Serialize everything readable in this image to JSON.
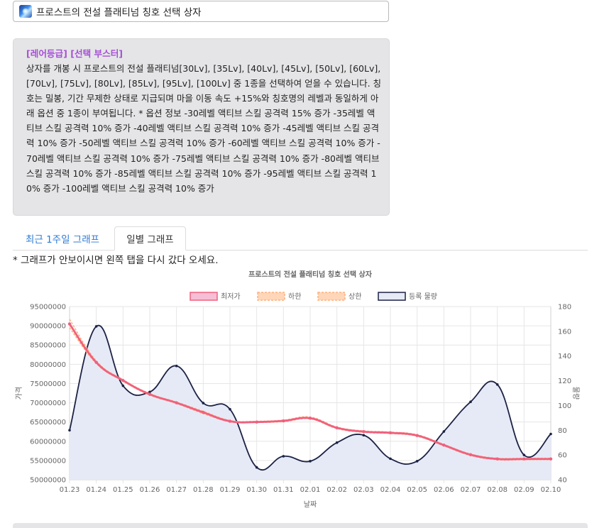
{
  "item": {
    "icon": "frost-crystal-icon",
    "title": "프로스트의 전설 플래티넘 칭호 선택 상자"
  },
  "description": {
    "tags": "[레어등급] [선택 부스터]",
    "text": "상자를 개봉 시 프로스트의 전설 플래티넘[30Lv], [35Lv], [40Lv], [45Lv], [50Lv], [60Lv], [70Lv], [75Lv], [80Lv], [85Lv], [95Lv], [100Lv] 중 1종을 선택하여 얻을 수 있습니다. 칭호는 밀봉, 기간 무제한 상태로 지급되며 마을 이동 속도 +15%와 칭호명의 레벨과 동일하게 아래 옵션 중 1종이 부여됩니다. * 옵션 정보 -30레벨 액티브 스킬 공격력 15% 증가 -35레벨 액티브 스킬 공격력 10% 증가 -40레벨 액티브 스킬 공격력 10% 증가 -45레벨 액티브 스킬 공격력 10% 증가 -50레벨 액티브 스킬 공격력 10% 증가 -60레벨 액티브 스킬 공격력 10% 증가 -70레벨 액티브 스킬 공격력 10% 증가 -75레벨 액티브 스킬 공격력 10% 증가 -80레벨 액티브 스킬 공격력 10% 증가 -85레벨 액티브 스킬 공격력 10% 증가 -95레벨 액티브 스킬 공격력 10% 증가 -100레벨 액티브 스킬 공격력 10% 증가"
  },
  "tabs": {
    "week": "최근 1주일 그래프",
    "daily": "일별 그래프"
  },
  "notice": "* 그래프가 안보이시면 왼쪽 탭을 다시 갔다 오세요.",
  "chart_data": {
    "type": "line",
    "title": "프로스트의 전설 플래티넘 칭호 선택 상자",
    "xlabel": "날짜",
    "ylabel": "가격",
    "y2label": "물량",
    "ylim": [
      50000000,
      95000000
    ],
    "y_ticks": [
      50000000,
      55000000,
      60000000,
      65000000,
      70000000,
      75000000,
      80000000,
      85000000,
      90000000,
      95000000
    ],
    "y2lim": [
      40,
      180
    ],
    "y2_ticks": [
      40,
      60,
      80,
      100,
      120,
      140,
      160,
      180
    ],
    "categories": [
      "01.23",
      "01.24",
      "01.25",
      "01.26",
      "01.27",
      "01.28",
      "01.29",
      "01.30",
      "01.31",
      "02.01",
      "02.02",
      "02.03",
      "02.04",
      "02.05",
      "02.06",
      "02.07",
      "02.08",
      "02.09",
      "02.10"
    ],
    "grid": true,
    "legend_position": "top",
    "series": [
      {
        "name": "최저가",
        "axis": "left",
        "color": "#f0607e",
        "fill": "#f7bfd6",
        "values": [
          90500000,
          80500000,
          75800000,
          72200000,
          70000000,
          67500000,
          65200000,
          65000000,
          65300000,
          66000000,
          63500000,
          62500000,
          62200000,
          61500000,
          59000000,
          56500000,
          55400000,
          55400000,
          55400000
        ]
      },
      {
        "name": "하한",
        "axis": "left",
        "color": "#ffb07c",
        "fill": "#ffd6b8",
        "style": "dashed",
        "values": [
          89500000,
          80200000,
          75600000,
          72000000,
          69800000,
          67200000,
          65100000,
          64900000,
          65100000,
          65800000,
          63300000,
          62300000,
          62000000,
          61300000,
          58800000,
          56300000,
          55200000,
          55200000,
          55200000
        ]
      },
      {
        "name": "상한",
        "axis": "left",
        "color": "#ffb07c",
        "fill": "#ffd6b8",
        "style": "dashed",
        "values": [
          91700000,
          80900000,
          76000000,
          72400000,
          70200000,
          67800000,
          65400000,
          65200000,
          65500000,
          66300000,
          63700000,
          62700000,
          62400000,
          61700000,
          59200000,
          56700000,
          55600000,
          55600000,
          55600000
        ]
      },
      {
        "name": "등록 물량",
        "axis": "right",
        "color": "#1c2244",
        "fill": "#e6eaf6",
        "area": true,
        "values": [
          80,
          164,
          116,
          111,
          132,
          102,
          97,
          50,
          59,
          55,
          70,
          76,
          57,
          55,
          79,
          103,
          117,
          60,
          77
        ]
      }
    ]
  }
}
